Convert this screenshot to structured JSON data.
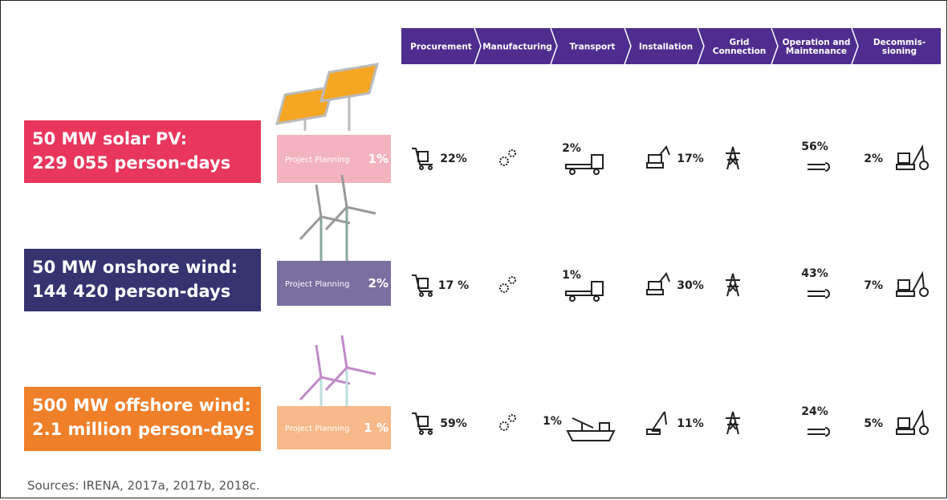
{
  "header": {
    "stages": [
      {
        "lines": [
          "Procurement"
        ]
      },
      {
        "lines": [
          "Manufacturing"
        ]
      },
      {
        "lines": [
          "Transport"
        ]
      },
      {
        "lines": [
          "Installation"
        ]
      },
      {
        "lines": [
          "Grid",
          "Connection"
        ]
      },
      {
        "lines": [
          "Operation and",
          "Maintenance"
        ]
      },
      {
        "lines": [
          "Decommis-",
          "sioning"
        ]
      }
    ]
  },
  "rows": [
    {
      "label": [
        "50 MW solar PV:",
        "229 055 person-days"
      ],
      "planning": "Project Planning",
      "planning_share": "1%",
      "values": [
        "22%",
        null,
        "2%",
        "17%",
        null,
        "56%",
        "2%"
      ]
    },
    {
      "label": [
        "50 MW onshore wind:",
        "144 420 person-days"
      ],
      "planning": "Project Planning",
      "planning_share": "2%",
      "values": [
        "17 %",
        null,
        "1%",
        "30%",
        null,
        "43%",
        "7%"
      ]
    },
    {
      "label": [
        "500 MW offshore wind:",
        "2.1 million person-days"
      ],
      "planning": "Project Planning",
      "planning_share": "1 %",
      "values": [
        "59%",
        null,
        "1%",
        "11%",
        null,
        "24%",
        "5%"
      ]
    }
  ],
  "source": "Sources: IRENA, 2017a, 2017b, 2018c."
}
